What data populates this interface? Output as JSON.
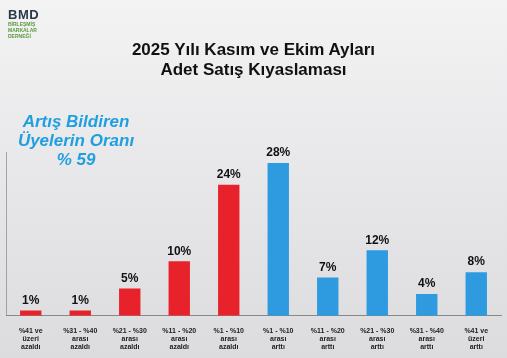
{
  "chart_data": {
    "type": "bar",
    "title": [
      "2025 Yılı Kasım ve Ekim Ayları",
      "Adet Satış Kıyaslaması"
    ],
    "logo": [
      "BMD",
      "BİRLEŞMİŞ",
      "MARKALAR",
      "DERNEĞİ"
    ],
    "annotation": [
      "Artış Bildiren",
      "Üyelerin Oranı",
      "% 59"
    ],
    "categories": [
      [
        "%41 ve",
        "üzeri",
        "azaldı"
      ],
      [
        "%31 - %40",
        "arası",
        "azaldı"
      ],
      [
        "%21 - %30",
        "arası",
        "azaldı"
      ],
      [
        "%11 - %20",
        "arası",
        "azaldı"
      ],
      [
        "%1 - %10",
        "arası",
        "azaldı"
      ],
      [
        "%1 - %10",
        "arası",
        "arttı"
      ],
      [
        "%11 - %20",
        "arası",
        "arttı"
      ],
      [
        "%21 - %30",
        "arası",
        "arttı"
      ],
      [
        "%31 - %40",
        "arası",
        "arttı"
      ],
      [
        "%41 ve",
        "üzeri",
        "arttı"
      ]
    ],
    "values": [
      1,
      1,
      5,
      10,
      24,
      28,
      7,
      12,
      4,
      8
    ],
    "value_labels": [
      "1%",
      "1%",
      "5%",
      "10%",
      "24%",
      "28%",
      "7%",
      "12%",
      "4%",
      "8%"
    ],
    "colors": [
      "#e8222b",
      "#e8222b",
      "#e8222b",
      "#e8222b",
      "#e8222b",
      "#2e9ae0",
      "#2e9ae0",
      "#2e9ae0",
      "#2e9ae0",
      "#2e9ae0"
    ],
    "ylim": [
      0,
      30
    ],
    "grid": false,
    "data_labels": true,
    "tick_labels": "x"
  }
}
